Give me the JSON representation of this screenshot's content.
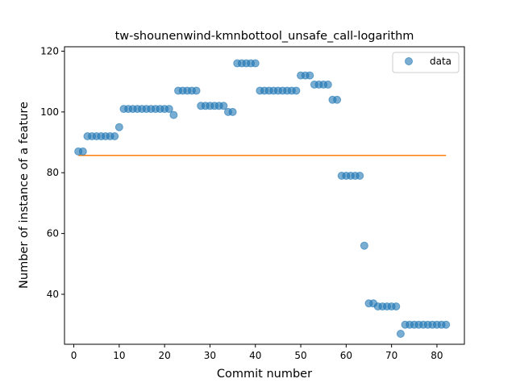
{
  "chart_data": {
    "type": "scatter",
    "title": "tw-shounenwind-kmnbottool_unsafe_call-logarithm",
    "xlabel": "Commit number",
    "ylabel": "Number of instance of a feature",
    "xlim": [
      -2.05,
      86.05
    ],
    "ylim": [
      23.55,
      121.45
    ],
    "xticks": [
      0,
      10,
      20,
      30,
      40,
      50,
      60,
      70,
      80
    ],
    "yticks": [
      40,
      60,
      80,
      100,
      120
    ],
    "grid": false,
    "legend": {
      "placement": "top-right",
      "entries": [
        "data"
      ]
    },
    "colors": {
      "points": "#1f77b4",
      "fit": "#ff7f0e"
    },
    "series": [
      {
        "name": "data",
        "x": [
          1,
          2,
          3,
          4,
          5,
          6,
          7,
          8,
          9,
          10,
          11,
          12,
          13,
          14,
          15,
          16,
          17,
          18,
          19,
          20,
          21,
          22,
          23,
          24,
          25,
          26,
          27,
          28,
          29,
          30,
          31,
          32,
          33,
          34,
          35,
          36,
          37,
          38,
          39,
          40,
          41,
          42,
          43,
          44,
          45,
          46,
          47,
          48,
          49,
          50,
          51,
          52,
          53,
          54,
          55,
          56,
          57,
          58,
          59,
          60,
          61,
          62,
          63,
          64,
          65,
          66,
          67,
          68,
          69,
          70,
          71,
          72,
          73,
          74,
          75,
          76,
          77,
          78,
          79,
          80,
          81,
          82
        ],
        "y": [
          87,
          87,
          92,
          92,
          92,
          92,
          92,
          92,
          92,
          95,
          101,
          101,
          101,
          101,
          101,
          101,
          101,
          101,
          101,
          101,
          101,
          99,
          107,
          107,
          107,
          107,
          107,
          102,
          102,
          102,
          102,
          102,
          102,
          100,
          100,
          116,
          116,
          116,
          116,
          116,
          107,
          107,
          107,
          107,
          107,
          107,
          107,
          107,
          107,
          112,
          112,
          112,
          109,
          109,
          109,
          109,
          104,
          104,
          79,
          79,
          79,
          79,
          79,
          56,
          37,
          37,
          36,
          36,
          36,
          36,
          36,
          27,
          30,
          30,
          30,
          30,
          30,
          30,
          30,
          30,
          30,
          30
        ]
      }
    ],
    "fit_line": {
      "x": [
        1,
        82
      ],
      "y": [
        85.7,
        85.7
      ]
    }
  }
}
